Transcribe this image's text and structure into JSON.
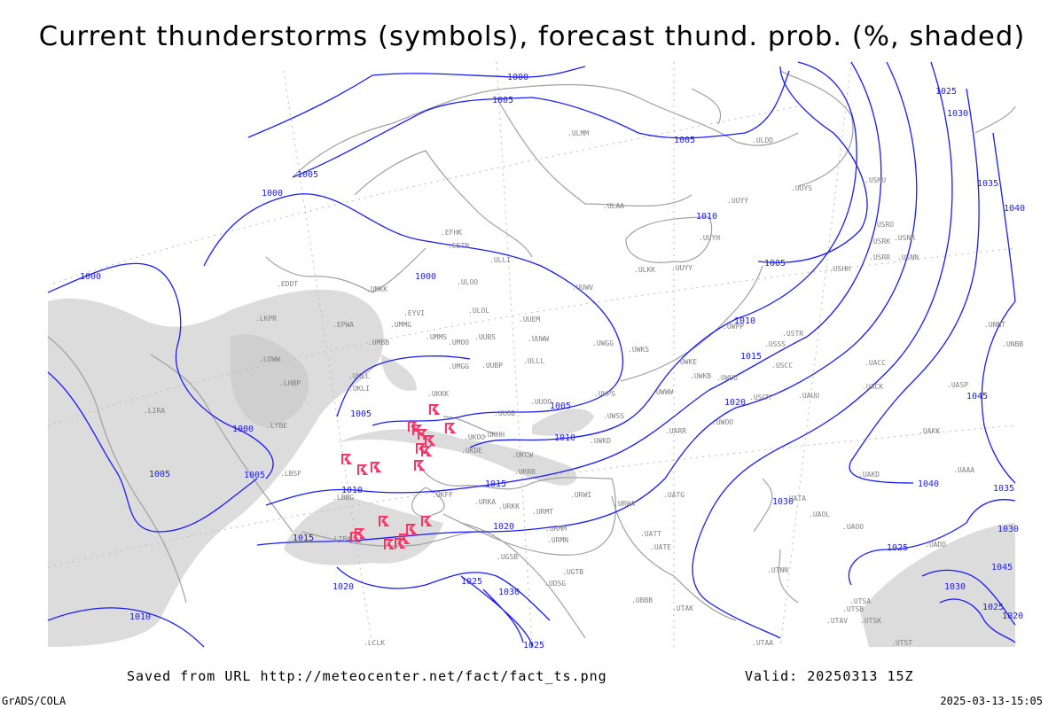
{
  "title": "Current thunderstorms (symbols), forecast thund. prob. (%, shaded)",
  "footer": {
    "saved_from": "Saved from URL http://meteocenter.net/fact/fact_ts.png",
    "valid": "Valid: 20250313 15Z",
    "software": "GrADS/COLA",
    "timestamp": "2025-03-13-15:05"
  },
  "colors": {
    "isobar": "#1a1aff",
    "coastline": "#a0a0a0",
    "shading": "#dcdcdc",
    "thunderstorm_symbol": "#ff3366",
    "station_label": "#808080"
  },
  "isobar_labels": [
    "1000",
    "1005",
    "1005",
    "1005",
    "1000",
    "1000",
    "1000",
    "1010",
    "1005",
    "1025",
    "1030",
    "1035",
    "1040",
    "1010",
    "1015",
    "1020",
    "1005",
    "1000",
    "1005",
    "1010",
    "1015",
    "1010",
    "1005",
    "1005",
    "1015",
    "1020",
    "1025",
    "1030",
    "1025",
    "1020",
    "1010",
    "1030",
    "1025",
    "1030",
    "1025",
    "1035",
    "1040",
    "1045",
    "1030",
    "1045",
    "1020"
  ],
  "station_labels": [
    "ULAA",
    "EFHK",
    "EETN",
    "ULLI",
    "ULOO",
    "ULOL",
    "EYVI",
    "UMMG",
    "UMMS",
    "UMOO",
    "UUBS",
    "UUEM",
    "UUWW",
    "UWGG",
    "UWKS",
    "UMKK",
    "EPWA",
    "UMBB",
    "LKPR",
    "LOWW",
    "LHBP",
    "UKLL",
    "UKLI",
    "UKKK",
    "UMGG",
    "UUBP",
    "UUOO",
    "UUOB",
    "UKHH",
    "UKOO",
    "UKDE",
    "UKCW",
    "URRR",
    "UKFF",
    "URKA",
    "URKK",
    "URMT",
    "URMM",
    "URMN",
    "URWI",
    "URWA",
    "UATG",
    "UATT",
    "UATE",
    "UGSB",
    "UGTB",
    "UDSG",
    "UBBB",
    "UTAK",
    "UTAA",
    "UTNN",
    "UTSA",
    "UTSB",
    "UTAV",
    "UTSK",
    "UTST",
    "UAOO",
    "UAOL",
    "UAKD",
    "UAAA",
    "UADD",
    "UAUU",
    "UACK",
    "UACC",
    "UASP",
    "UAKK",
    "UARR",
    "UWOO",
    "UWUU",
    "UWKE",
    "UWKB",
    "UWPP",
    "USSS",
    "USCC",
    "USCM",
    "USTR",
    "UNBB",
    "UNNT",
    "USNN",
    "USRR",
    "USHH",
    "USNR",
    "USRK",
    "USRO",
    "USMU",
    "UUYY",
    "UUYH",
    "ULKK",
    "UUYY",
    "UUWV",
    "ULMM",
    "ULDD",
    "UUYS",
    "LIRA",
    "LYBE",
    "LBSF",
    "LBBG",
    "LTBA",
    "LCLK",
    "EDDT",
    "UWWW",
    "UWPS",
    "UWSS",
    "UWKD",
    "UATA",
    "ULLL"
  ],
  "thunderstorm_count": 20
}
